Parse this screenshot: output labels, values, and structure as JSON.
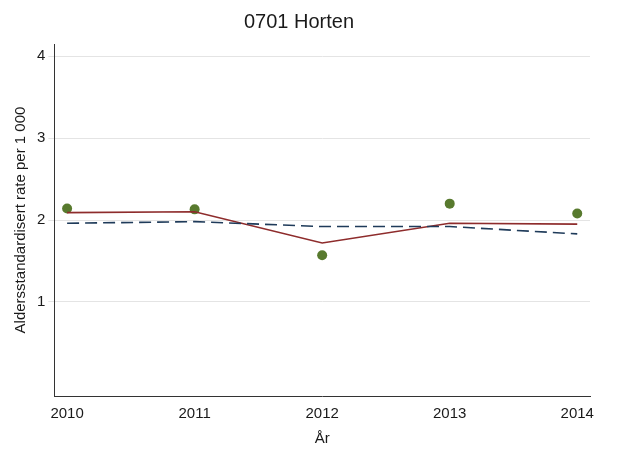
{
  "chart_data": {
    "type": "line",
    "title": "0701 Horten",
    "x_label": "År",
    "y_label": "Aldersstandardisert rate per 1 000",
    "x": [
      2010,
      2011,
      2012,
      2013,
      2014
    ],
    "xlim": [
      2009.9,
      2014.1
    ],
    "xticks": [
      2010,
      2011,
      2012,
      2013,
      2014
    ],
    "ylim": [
      -0.15,
      4.15
    ],
    "yticks": [
      1,
      2,
      3,
      4
    ],
    "grid": "y",
    "series": [
      {
        "type": "line",
        "line_style": "dashed",
        "color": "#1f3b5a",
        "values": [
          1.96,
          1.98,
          1.92,
          1.92,
          1.83
        ]
      },
      {
        "type": "line",
        "line_style": "solid",
        "color": "#8e2c2c",
        "values": [
          2.09,
          2.1,
          1.72,
          1.96,
          1.95
        ]
      },
      {
        "type": "scatter",
        "marker": "circle",
        "color": "#587a2e",
        "values": [
          2.14,
          2.13,
          1.57,
          2.2,
          2.08
        ]
      }
    ]
  }
}
